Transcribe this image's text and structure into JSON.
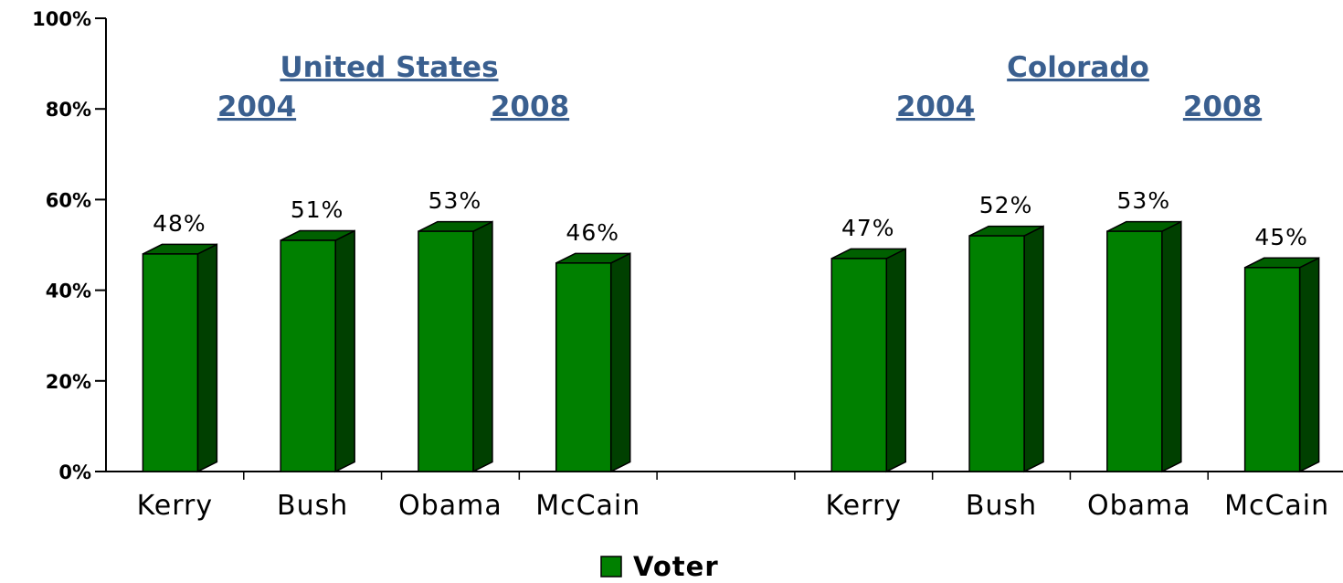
{
  "chart_data": {
    "type": "bar",
    "categories": [
      "Kerry",
      "Bush",
      "Obama",
      "McCain",
      "",
      "Kerry",
      "Bush",
      "Obama",
      "McCain"
    ],
    "series": [
      {
        "name": "Voter",
        "values": [
          48,
          51,
          53,
          46,
          null,
          47,
          52,
          53,
          45
        ]
      }
    ],
    "value_labels": [
      "48%",
      "51%",
      "53%",
      "46%",
      "",
      "47%",
      "52%",
      "53%",
      "45%"
    ],
    "ylim": [
      0,
      100
    ],
    "yticks": [
      "0%",
      "20%",
      "40%",
      "60%",
      "80%",
      "100%"
    ],
    "grid": false,
    "legend": "bottom-center",
    "annotations": {
      "group_titles": [
        "United States",
        "Colorado"
      ],
      "year_labels": [
        "2004",
        "2008",
        "2004",
        "2008"
      ]
    },
    "colors": {
      "bar_front": "#008000",
      "bar_side": "#004000",
      "bar_top": "#006000",
      "title_color": "#3a5f8f"
    }
  }
}
